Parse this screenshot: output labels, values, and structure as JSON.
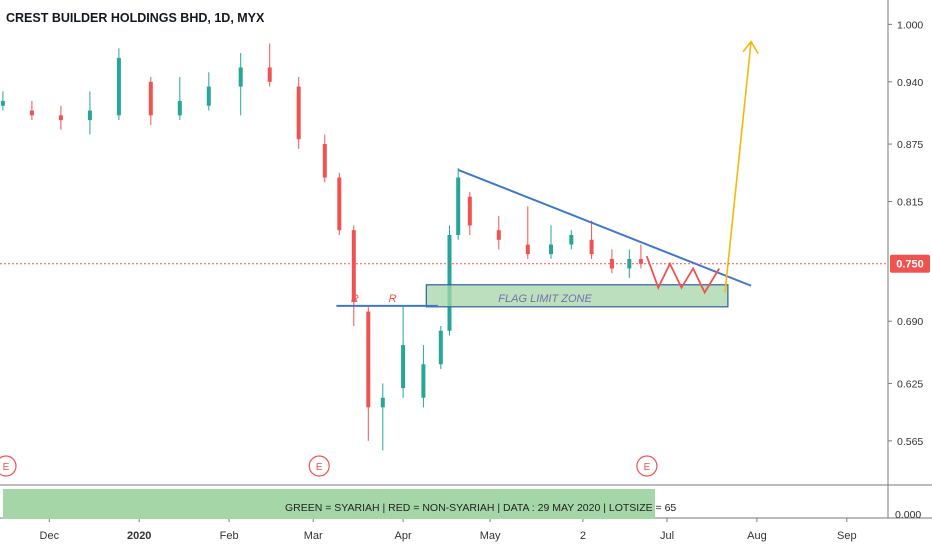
{
  "header": {
    "title": "CREST BUILDER HOLDINGS BHD, 1D, MYX"
  },
  "price_axis": {
    "ticks": [
      "1.000",
      "0.940",
      "0.875",
      "0.815",
      "0.750",
      "0.690",
      "0.625",
      "0.565"
    ],
    "current_price_label": "0.750",
    "lower_pane_tick": "0.000"
  },
  "time_axis": {
    "labels": [
      "Dec",
      "2020",
      "Feb",
      "Mar",
      "Apr",
      "May",
      "2",
      "Jul",
      "Aug",
      "Sep"
    ]
  },
  "annotations": {
    "zone_label": "FLAG LIMIT ZONE",
    "resistance_marks": [
      "R",
      "R"
    ],
    "earnings_markers": [
      "E",
      "E",
      "E"
    ],
    "info_banner": "GREEN = SYARIAH   |   RED = NON-SYARIAH   |  DATA : 29 MAY 2020   |   LOTSIZE = 65"
  },
  "colors": {
    "up": "#26a69a",
    "down": "#ef5350",
    "trendline": "#3f78c9",
    "projection": "#f2b90c",
    "zone_fill": "#a5d6a7",
    "price_line": "#ef5350",
    "earnings": "#ef5350"
  },
  "chart_data": {
    "type": "candlestick",
    "title": "CREST BUILDER HOLDINGS BHD, 1D, MYX",
    "x_range": [
      "2019-11-14",
      "2020-09-30"
    ],
    "ylim": [
      0.545,
      1.015
    ],
    "last_price": 0.75,
    "candles": [
      {
        "date": "2019-11-15",
        "open": 0.915,
        "close": 0.92,
        "high": 0.93,
        "low": 0.91
      },
      {
        "date": "2019-11-25",
        "open": 0.91,
        "close": 0.905,
        "high": 0.92,
        "low": 0.9
      },
      {
        "date": "2019-12-05",
        "open": 0.905,
        "close": 0.9,
        "high": 0.915,
        "low": 0.89
      },
      {
        "date": "2019-12-15",
        "open": 0.9,
        "close": 0.91,
        "high": 0.93,
        "low": 0.885
      },
      {
        "date": "2019-12-25",
        "open": 0.905,
        "close": 0.965,
        "high": 0.975,
        "low": 0.9
      },
      {
        "date": "2020-01-05",
        "open": 0.94,
        "close": 0.905,
        "high": 0.945,
        "low": 0.895
      },
      {
        "date": "2020-01-15",
        "open": 0.905,
        "close": 0.92,
        "high": 0.945,
        "low": 0.9
      },
      {
        "date": "2020-01-25",
        "open": 0.915,
        "close": 0.935,
        "high": 0.95,
        "low": 0.91
      },
      {
        "date": "2020-02-05",
        "open": 0.935,
        "close": 0.955,
        "high": 0.97,
        "low": 0.905
      },
      {
        "date": "2020-02-15",
        "open": 0.955,
        "close": 0.94,
        "high": 0.98,
        "low": 0.935
      },
      {
        "date": "2020-02-25",
        "open": 0.935,
        "close": 0.88,
        "high": 0.945,
        "low": 0.87
      },
      {
        "date": "2020-03-05",
        "open": 0.875,
        "close": 0.84,
        "high": 0.885,
        "low": 0.835
      },
      {
        "date": "2020-03-10",
        "open": 0.84,
        "close": 0.785,
        "high": 0.845,
        "low": 0.78
      },
      {
        "date": "2020-03-15",
        "open": 0.785,
        "close": 0.71,
        "high": 0.79,
        "low": 0.685
      },
      {
        "date": "2020-03-20",
        "open": 0.7,
        "close": 0.6,
        "high": 0.705,
        "low": 0.565
      },
      {
        "date": "2020-03-25",
        "open": 0.6,
        "close": 0.61,
        "high": 0.625,
        "low": 0.555
      },
      {
        "date": "2020-04-01",
        "open": 0.62,
        "close": 0.665,
        "high": 0.705,
        "low": 0.61
      },
      {
        "date": "2020-04-08",
        "open": 0.61,
        "close": 0.645,
        "high": 0.665,
        "low": 0.6
      },
      {
        "date": "2020-04-14",
        "open": 0.645,
        "close": 0.68,
        "high": 0.685,
        "low": 0.64
      },
      {
        "date": "2020-04-17",
        "open": 0.68,
        "close": 0.78,
        "high": 0.79,
        "low": 0.675
      },
      {
        "date": "2020-04-20",
        "open": 0.78,
        "close": 0.84,
        "high": 0.85,
        "low": 0.775
      },
      {
        "date": "2020-04-24",
        "open": 0.82,
        "close": 0.79,
        "high": 0.825,
        "low": 0.78
      },
      {
        "date": "2020-05-04",
        "open": 0.785,
        "close": 0.775,
        "high": 0.8,
        "low": 0.765
      },
      {
        "date": "2020-05-14",
        "open": 0.77,
        "close": 0.76,
        "high": 0.81,
        "low": 0.755
      },
      {
        "date": "2020-05-22",
        "open": 0.76,
        "close": 0.77,
        "high": 0.79,
        "low": 0.755
      },
      {
        "date": "2020-05-29",
        "open": 0.77,
        "close": 0.78,
        "high": 0.785,
        "low": 0.765
      },
      {
        "date": "2020-06-05",
        "open": 0.775,
        "close": 0.76,
        "high": 0.795,
        "low": 0.755
      },
      {
        "date": "2020-06-12",
        "open": 0.755,
        "close": 0.745,
        "high": 0.765,
        "low": 0.74
      },
      {
        "date": "2020-06-18",
        "open": 0.745,
        "close": 0.755,
        "high": 0.765,
        "low": 0.735
      },
      {
        "date": "2020-06-22",
        "open": 0.755,
        "close": 0.75,
        "high": 0.77,
        "low": 0.745
      }
    ],
    "trendline": {
      "from": [
        "2020-04-20",
        0.848
      ],
      "to": [
        "2020-07-30",
        0.727
      ]
    },
    "support_line": {
      "from": [
        "2020-03-09",
        0.706
      ],
      "to": [
        "2020-04-13",
        0.706
      ]
    },
    "flag_limit_zone": {
      "x_from": "2020-04-09",
      "x_to": "2020-07-22",
      "y_from": 0.705,
      "y_to": 0.728
    },
    "projection": {
      "from": [
        "2020-07-21",
        0.72
      ],
      "to": [
        "2020-07-30",
        0.982
      ]
    },
    "zigzag": [
      [
        "2020-06-24",
        0.758
      ],
      [
        "2020-06-28",
        0.725
      ],
      [
        "2020-07-02",
        0.75
      ],
      [
        "2020-07-06",
        0.725
      ],
      [
        "2020-07-10",
        0.745
      ],
      [
        "2020-07-14",
        0.72
      ],
      [
        "2020-07-19",
        0.745
      ]
    ],
    "earnings_dates": [
      "2019-11-14",
      "2020-03-01",
      "2020-06-22"
    ]
  }
}
